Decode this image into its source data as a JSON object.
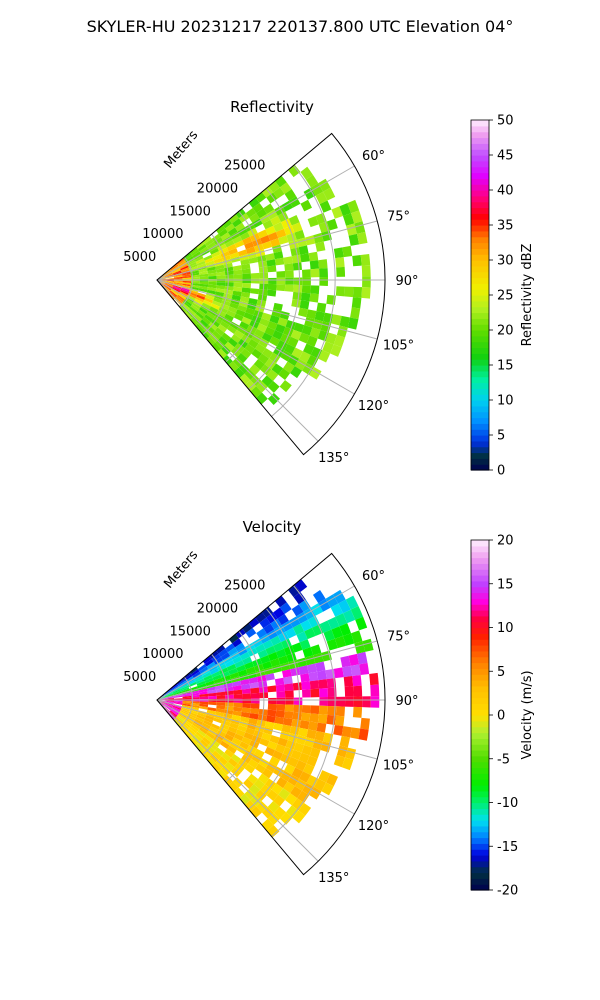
{
  "title": "SKYLER-HU  20231217  220137.800 UTC Elevation 04°",
  "chart_data": [
    {
      "type": "heatmap",
      "subtype": "polar-sector (radar PPI)",
      "title": "Reflectivity",
      "radial_label": "Meters",
      "radial_ticks": [
        5000,
        10000,
        15000,
        20000,
        25000
      ],
      "range_max_m": 32000,
      "azimuth_ticks_deg": [
        60,
        75,
        90,
        105,
        120,
        135
      ],
      "azimuth_range_deg": [
        50,
        140
      ],
      "colorbar": {
        "label": "Reflectivity dBZ",
        "min": 0,
        "max": 50,
        "ticks": [
          0,
          5,
          10,
          15,
          20,
          25,
          30,
          35,
          40,
          45,
          50
        ],
        "stops": [
          {
            "v": 0,
            "c": "#000050"
          },
          {
            "v": 2,
            "c": "#003040"
          },
          {
            "v": 4,
            "c": "#0030e0"
          },
          {
            "v": 7,
            "c": "#0090ff"
          },
          {
            "v": 10,
            "c": "#00d0f0"
          },
          {
            "v": 13,
            "c": "#00f0a0"
          },
          {
            "v": 16,
            "c": "#10d010"
          },
          {
            "v": 20,
            "c": "#60dd00"
          },
          {
            "v": 23,
            "c": "#b0f020"
          },
          {
            "v": 26,
            "c": "#f0f000"
          },
          {
            "v": 30,
            "c": "#ffc000"
          },
          {
            "v": 33,
            "c": "#ff8000"
          },
          {
            "v": 36,
            "c": "#ff0000"
          },
          {
            "v": 39,
            "c": "#ff0080"
          },
          {
            "v": 42,
            "c": "#e000ff"
          },
          {
            "v": 45,
            "c": "#c050ff"
          },
          {
            "v": 48,
            "c": "#f0a0f0"
          },
          {
            "v": 50,
            "c": "#fff0ff"
          }
        ]
      },
      "field_description": "values mostly 15-30 dBZ, strongest (30-40 dBZ) near radar and in band near 70° azimuth"
    },
    {
      "type": "heatmap",
      "subtype": "polar-sector (radar PPI)",
      "title": "Velocity",
      "radial_label": "Meters",
      "radial_ticks": [
        5000,
        10000,
        15000,
        20000,
        25000
      ],
      "range_max_m": 32000,
      "azimuth_ticks_deg": [
        60,
        75,
        90,
        105,
        120,
        135
      ],
      "azimuth_range_deg": [
        50,
        140
      ],
      "colorbar": {
        "label": "Velocity (m/s)",
        "min": -20,
        "max": 20,
        "ticks": [
          -20,
          -15,
          -10,
          -5,
          0,
          5,
          10,
          15,
          20
        ],
        "stops": [
          {
            "v": -20,
            "c": "#000050"
          },
          {
            "v": -18,
            "c": "#003040"
          },
          {
            "v": -16,
            "c": "#0000e0"
          },
          {
            "v": -14,
            "c": "#0080ff"
          },
          {
            "v": -12,
            "c": "#00e0f0"
          },
          {
            "v": -10,
            "c": "#00f070"
          },
          {
            "v": -8,
            "c": "#00ee00"
          },
          {
            "v": -5,
            "c": "#50dd00"
          },
          {
            "v": -2,
            "c": "#b0f030"
          },
          {
            "v": 0,
            "c": "#ffe000"
          },
          {
            "v": 3,
            "c": "#ffc000"
          },
          {
            "v": 6,
            "c": "#ff8000"
          },
          {
            "v": 9,
            "c": "#ff2000"
          },
          {
            "v": 11,
            "c": "#ff0040"
          },
          {
            "v": 13,
            "c": "#ff00e0"
          },
          {
            "v": 15,
            "c": "#c040ff"
          },
          {
            "v": 18,
            "c": "#f0a0f0"
          },
          {
            "v": 20,
            "c": "#fff0ff"
          }
        ]
      },
      "field_description": "negative (-5 to -15 m/s) north of ~80° azimuth, strong positive (10-15) near 85-95°, ~0 to +5 m/s south of 95°"
    }
  ]
}
